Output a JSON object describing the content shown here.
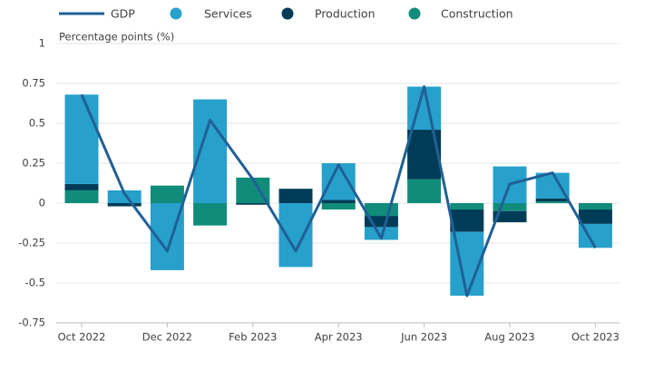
{
  "chart_data": {
    "type": "bar",
    "y_label": "Percentage points (%)",
    "categories": [
      "Oct 2022",
      null,
      "Dec 2022",
      null,
      "Feb 2023",
      null,
      "Apr 2023",
      null,
      "Jun 2023",
      null,
      "Aug 2023",
      null,
      "Oct 2023"
    ],
    "series": [
      {
        "name": "GDP",
        "type": "line",
        "color": "#206095",
        "values": [
          0.68,
          0.06,
          -0.3,
          0.52,
          0.15,
          -0.3,
          0.24,
          -0.22,
          0.73,
          -0.58,
          0.12,
          0.19,
          -0.28
        ]
      },
      {
        "name": "Services",
        "type": "bar",
        "color": "#27a0cc",
        "values": [
          0.56,
          0.08,
          -0.42,
          0.65,
          0,
          -0.4,
          0.23,
          -0.08,
          0.27,
          -0.4,
          0.23,
          0.16,
          -0.15
        ]
      },
      {
        "name": "Production",
        "type": "bar",
        "color": "#003c57",
        "values": [
          0.04,
          -0.02,
          0,
          0,
          -0.01,
          0.09,
          0.02,
          -0.07,
          0.31,
          -0.14,
          -0.07,
          0.02,
          -0.09
        ]
      },
      {
        "name": "Construction",
        "type": "bar",
        "color": "#118c7b",
        "values": [
          0.08,
          0,
          0.11,
          -0.14,
          0.16,
          0,
          -0.04,
          -0.08,
          0.15,
          -0.04,
          -0.05,
          0.01,
          -0.04
        ]
      }
    ],
    "ylim": [
      -0.75,
      1
    ],
    "yticks": [
      -0.75,
      -0.5,
      -0.25,
      0,
      0.25,
      0.5,
      0.75,
      1
    ],
    "grid": true
  }
}
